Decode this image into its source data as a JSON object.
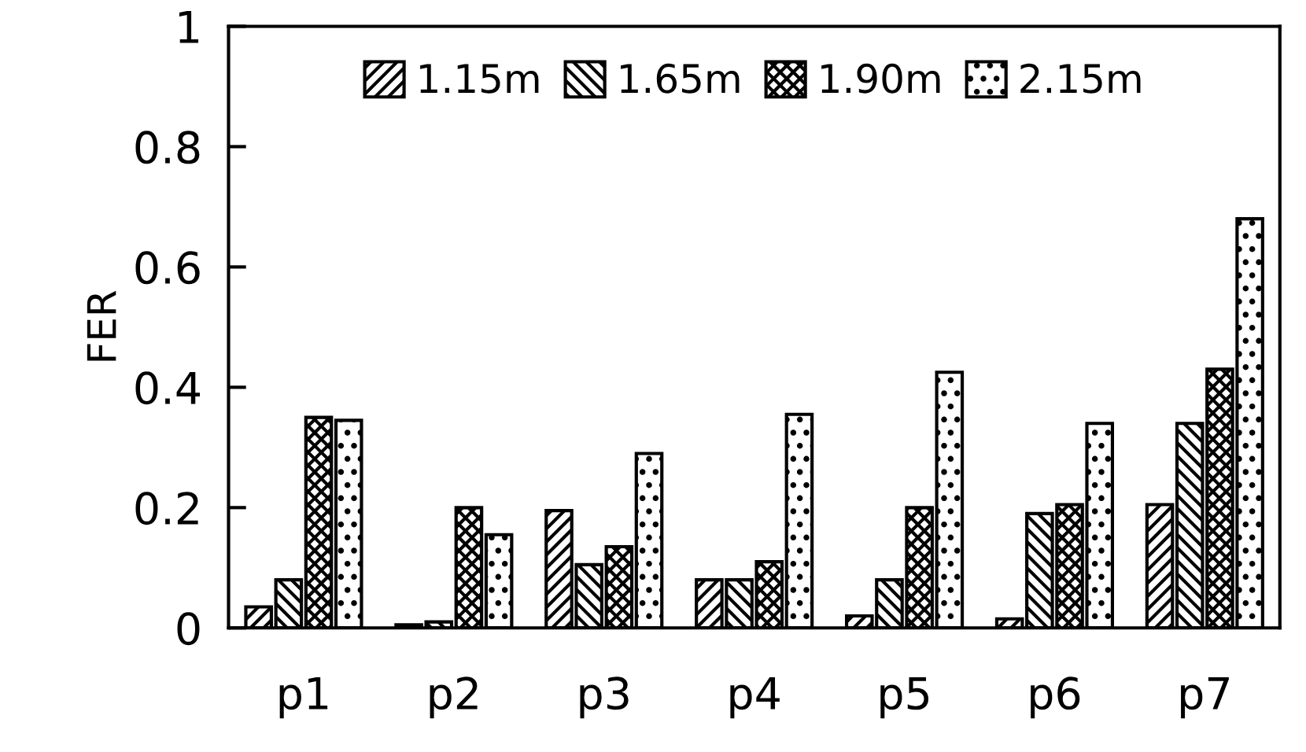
{
  "chart_data": {
    "type": "bar",
    "ylabel": "FER",
    "categories": [
      "p1",
      "p2",
      "p3",
      "p4",
      "p5",
      "p6",
      "p7"
    ],
    "series": [
      {
        "name": "1.15m",
        "color": "#000000",
        "values": [
          0.035,
          0.005,
          0.195,
          0.08,
          0.02,
          0.015,
          0.205
        ]
      },
      {
        "name": "1.65m",
        "color": "#000000",
        "values": [
          0.08,
          0.01,
          0.105,
          0.08,
          0.08,
          0.19,
          0.34
        ]
      },
      {
        "name": "1.90m",
        "color": "#000000",
        "values": [
          0.35,
          0.2,
          0.135,
          0.11,
          0.2,
          0.205,
          0.43
        ]
      },
      {
        "name": "2.15m",
        "color": "#000000",
        "values": [
          0.345,
          0.155,
          0.29,
          0.355,
          0.425,
          0.34,
          0.68
        ]
      }
    ],
    "ylim": [
      0,
      1
    ],
    "yticks": [
      0,
      0.2,
      0.4,
      0.6,
      0.8,
      1
    ],
    "grid": false,
    "legend": "top"
  }
}
